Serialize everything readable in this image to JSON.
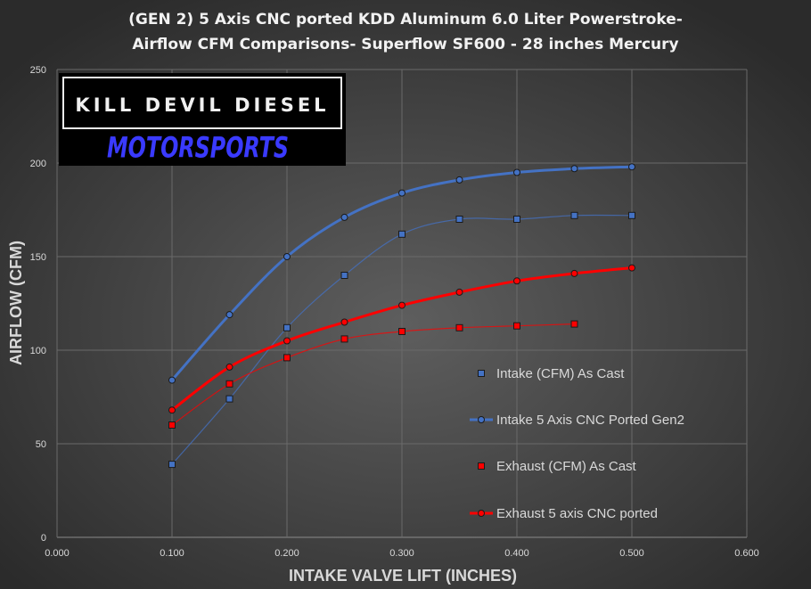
{
  "chart_data": {
    "type": "line",
    "title_lines": [
      "(GEN 2) 5 Axis CNC ported KDD Aluminum  6.0 Liter Powerstroke-",
      "Airflow  CFM Comparisons-  Superflow  SF600 - 28 inches Mercury"
    ],
    "xlabel": "INTAKE VALVE LIFT (INCHES)",
    "ylabel": "AIRFLOW (CFM)",
    "xlim": [
      0,
      0.6
    ],
    "ylim": [
      0,
      250
    ],
    "xticks": [
      "0.000",
      "0.100",
      "0.200",
      "0.300",
      "0.400",
      "0.500",
      "0.600"
    ],
    "yticks": [
      "0",
      "50",
      "100",
      "150",
      "200",
      "250"
    ],
    "grid": true,
    "legend_position": "right-center",
    "logo": {
      "line1": "KILL DEVIL DIESEL",
      "line2": "MOTORSPORTS"
    },
    "series": [
      {
        "name": "Intake (CFM) As Cast",
        "color": "#4472c4",
        "marker": "square",
        "line": "thin",
        "x": [
          0.1,
          0.15,
          0.2,
          0.25,
          0.3,
          0.35,
          0.4,
          0.45,
          0.5
        ],
        "y": [
          39,
          74,
          112,
          140,
          162,
          170,
          170,
          172,
          172
        ]
      },
      {
        "name": "Intake 5 Axis CNC Ported Gen2",
        "color": "#4472c4",
        "marker": "circle",
        "line": "thick",
        "x": [
          0.1,
          0.15,
          0.2,
          0.25,
          0.3,
          0.35,
          0.4,
          0.45,
          0.5
        ],
        "y": [
          84,
          119,
          150,
          171,
          184,
          191,
          195,
          197,
          198
        ]
      },
      {
        "name": "Exhaust (CFM) As Cast",
        "color": "#ff0000",
        "marker": "square",
        "line": "thin",
        "x": [
          0.1,
          0.15,
          0.2,
          0.25,
          0.3,
          0.35,
          0.4,
          0.45
        ],
        "y": [
          60,
          82,
          96,
          106,
          110,
          112,
          113,
          114
        ]
      },
      {
        "name": "Exhaust 5 axis CNC ported",
        "color": "#ff0000",
        "marker": "circle",
        "line": "thick",
        "x": [
          0.1,
          0.15,
          0.2,
          0.25,
          0.3,
          0.35,
          0.4,
          0.45,
          0.5
        ],
        "y": [
          68,
          91,
          105,
          115,
          124,
          131,
          137,
          141,
          144
        ]
      }
    ]
  }
}
